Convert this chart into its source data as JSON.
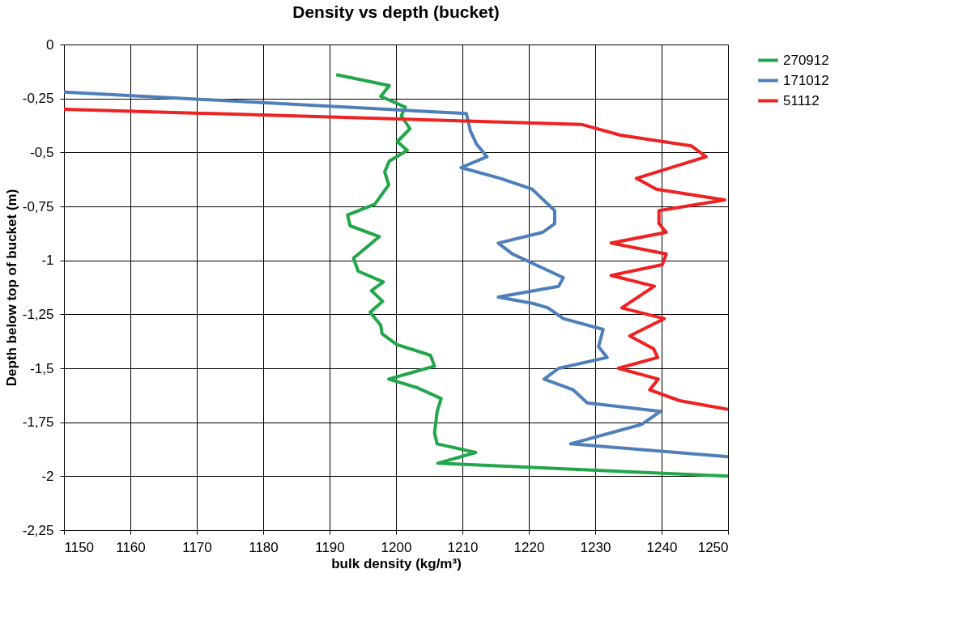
{
  "chart_data": {
    "type": "line",
    "title": "Density vs depth (bucket)",
    "xlabel": "bulk density (kg/m³)",
    "ylabel": "Depth below top of bucket (m)",
    "xlim": [
      1150,
      1250
    ],
    "xticks": [
      1150,
      1160,
      1170,
      1180,
      1190,
      1200,
      1210,
      1220,
      1230,
      1240,
      1250
    ],
    "ylim": [
      -2.25,
      0
    ],
    "yticks": [
      0,
      {
        "value": -0.25,
        "label": "-0,25"
      },
      {
        "value": -0.5,
        "label": "-0,5"
      },
      {
        "value": -0.75,
        "label": "-0,75"
      },
      -1,
      {
        "value": -1.25,
        "label": "-1,25"
      },
      {
        "value": -1.5,
        "label": "-1,5"
      },
      {
        "value": -1.75,
        "label": "-1,75"
      },
      -2,
      {
        "value": -2.25,
        "label": "-2,25"
      }
    ],
    "grid": true,
    "legend": "right",
    "marker": "none",
    "line_style": "solid",
    "series": [
      {
        "name": "270912",
        "color": "#22a64a",
        "x": [
          1191.0,
          1199.0,
          1197.7,
          1201.4,
          1200.8,
          1202.1,
          1200.2,
          1201.7,
          1199.0,
          1198.3,
          1198.9,
          1196.8,
          1192.7,
          1193.1,
          1197.5,
          1193.6,
          1194.3,
          1198.1,
          1196.3,
          1198.0,
          1196.1,
          1197.7,
          1197.9,
          1200.1,
          1205.2,
          1205.8,
          1198.9,
          1203.2,
          1206.8,
          1206.2,
          1205.8,
          1206.2,
          1212.0,
          1206.3,
          1250
        ],
        "values": [
          -0.14,
          -0.19,
          -0.24,
          -0.29,
          -0.33,
          -0.39,
          -0.45,
          -0.49,
          -0.54,
          -0.59,
          -0.65,
          -0.74,
          -0.79,
          -0.84,
          -0.89,
          -0.99,
          -1.05,
          -1.1,
          -1.14,
          -1.19,
          -1.24,
          -1.3,
          -1.34,
          -1.39,
          -1.44,
          -1.49,
          -1.55,
          -1.59,
          -1.64,
          -1.7,
          -1.8,
          -1.85,
          -1.89,
          -1.94,
          -2.0
        ]
      },
      {
        "name": "171012",
        "color": "#4f7fba",
        "x": [
          1150,
          1210.6,
          1211.2,
          1212.1,
          1213.7,
          1209.8,
          1215.7,
          1220.5,
          1223.9,
          1223.9,
          1222.1,
          1215.4,
          1217.5,
          1223.1,
          1225.2,
          1224.5,
          1215.4,
          1220.7,
          1222.9,
          1225.2,
          1231.2,
          1230.5,
          1231.8,
          1224.5,
          1222.3,
          1226.7,
          1228.8,
          1239.8,
          1237.0,
          1226.3,
          1250
        ],
        "values": [
          -0.22,
          -0.32,
          -0.4,
          -0.46,
          -0.52,
          -0.57,
          -0.62,
          -0.67,
          -0.77,
          -0.83,
          -0.87,
          -0.92,
          -0.97,
          -1.05,
          -1.08,
          -1.12,
          -1.17,
          -1.2,
          -1.22,
          -1.27,
          -1.32,
          -1.4,
          -1.45,
          -1.5,
          -1.55,
          -1.6,
          -1.66,
          -1.7,
          -1.76,
          -1.85,
          -1.91
        ]
      },
      {
        "name": "51112",
        "color": "#ee2222",
        "x": [
          1150,
          1227.9,
          1233.8,
          1244.5,
          1246.7,
          1236.2,
          1239.2,
          1249.5,
          1239.6,
          1239.6,
          1240.7,
          1232.4,
          1240.7,
          1240.1,
          1232.4,
          1238.9,
          1234.0,
          1240.4,
          1235.2,
          1238.8,
          1239.4,
          1233.5,
          1239.5,
          1238.2,
          1242.7,
          1250
        ],
        "values": [
          -0.3,
          -0.37,
          -0.42,
          -0.47,
          -0.52,
          -0.62,
          -0.67,
          -0.72,
          -0.77,
          -0.83,
          -0.87,
          -0.92,
          -0.97,
          -1.02,
          -1.07,
          -1.12,
          -1.22,
          -1.27,
          -1.35,
          -1.41,
          -1.45,
          -1.5,
          -1.55,
          -1.6,
          -1.65,
          -1.69
        ]
      }
    ]
  }
}
